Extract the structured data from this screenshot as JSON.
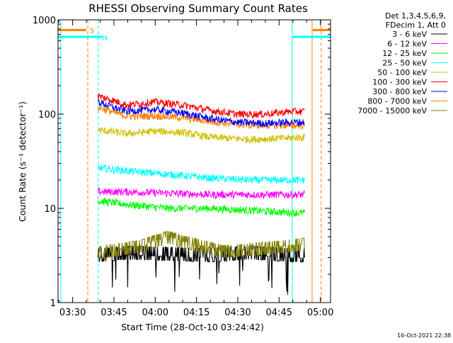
{
  "chart_data": {
    "type": "line",
    "title": "RHESSI Observing Summary Count Rates",
    "xlabel": "Start Time (28-Oct-10 03:24:42)",
    "ylabel": "Count Rate (s⁻¹ detector⁻¹)",
    "yscale": "log",
    "ylim": [
      1,
      1000
    ],
    "x_unit": "minutes after 03:24:42",
    "xlim": [
      0,
      99
    ],
    "x_ticks": [
      {
        "t": 5.3,
        "label": "03:30"
      },
      {
        "t": 20.3,
        "label": "03:45"
      },
      {
        "t": 35.3,
        "label": "04:00"
      },
      {
        "t": 50.3,
        "label": "04:15"
      },
      {
        "t": 65.3,
        "label": "04:30"
      },
      {
        "t": 80.3,
        "label": "04:45"
      },
      {
        "t": 95.3,
        "label": "05:00"
      }
    ],
    "y_ticks": [
      {
        "v": 1,
        "label": "1"
      },
      {
        "v": 10,
        "label": "10"
      },
      {
        "v": 100,
        "label": "100"
      },
      {
        "v": 1000,
        "label": "1000"
      }
    ],
    "timestamp": "16-Oct-2021 22:38",
    "legend": {
      "placement": "right",
      "header1": "Det 1,3,4,5,6,9,",
      "header2": "FDecim 1, Att 0"
    },
    "markers": {
      "saa_label": "S",
      "night_label": "N",
      "saa_color": "#ff8000",
      "night_color": "#00ffff",
      "saa_level": 780,
      "night_level": 660,
      "saa_end": 10.8,
      "night_end": 14.6,
      "saa_start": 92.3,
      "night_start": 85.1
    },
    "data_window": [
      14.5,
      89.6
    ],
    "series": [
      {
        "name": "3 - 6 keV",
        "color": "#000000",
        "noise": "quantized",
        "points": [
          [
            14.5,
            3.0
          ],
          [
            25,
            3.2
          ],
          [
            40,
            3.1
          ],
          [
            55,
            3.0
          ],
          [
            70,
            3.2
          ],
          [
            85,
            3.0
          ],
          [
            89.6,
            3.0
          ]
        ]
      },
      {
        "name": "6 - 12 keV",
        "color": "#ff00ff",
        "noise": "normal",
        "points": [
          [
            14.5,
            15
          ],
          [
            25,
            15
          ],
          [
            40,
            14.5
          ],
          [
            55,
            14
          ],
          [
            70,
            14
          ],
          [
            85,
            14
          ],
          [
            89.6,
            14
          ]
        ]
      },
      {
        "name": "12 - 25 keV",
        "color": "#00ff00",
        "noise": "normal",
        "points": [
          [
            14.5,
            12
          ],
          [
            25,
            11
          ],
          [
            40,
            10
          ],
          [
            55,
            10
          ],
          [
            70,
            9.5
          ],
          [
            85,
            9
          ],
          [
            89.6,
            9
          ]
        ]
      },
      {
        "name": "25 - 50 keV",
        "color": "#00ffff",
        "noise": "normal",
        "points": [
          [
            14.5,
            27
          ],
          [
            25,
            25
          ],
          [
            40,
            23
          ],
          [
            55,
            21
          ],
          [
            70,
            20
          ],
          [
            85,
            20
          ],
          [
            89.6,
            20
          ]
        ]
      },
      {
        "name": "50 - 100 keV",
        "color": "#d0c000",
        "noise": "normal",
        "points": [
          [
            14.5,
            68
          ],
          [
            25,
            62
          ],
          [
            35,
            66
          ],
          [
            45,
            64
          ],
          [
            55,
            57
          ],
          [
            70,
            54
          ],
          [
            85,
            56
          ],
          [
            89.6,
            57
          ]
        ]
      },
      {
        "name": "100 - 300 keV",
        "color": "#ff0000",
        "noise": "normal",
        "points": [
          [
            14.5,
            155
          ],
          [
            20,
            140
          ],
          [
            25,
            125
          ],
          [
            35,
            135
          ],
          [
            45,
            125
          ],
          [
            55,
            110
          ],
          [
            65,
            100
          ],
          [
            75,
            100
          ],
          [
            85,
            107
          ],
          [
            89.6,
            107
          ]
        ]
      },
      {
        "name": "300 - 800 keV",
        "color": "#0000ff",
        "noise": "normal",
        "points": [
          [
            14.5,
            135
          ],
          [
            20,
            118
          ],
          [
            25,
            108
          ],
          [
            35,
            112
          ],
          [
            45,
            103
          ],
          [
            55,
            90
          ],
          [
            65,
            82
          ],
          [
            75,
            80
          ],
          [
            85,
            82
          ],
          [
            89.6,
            82
          ]
        ]
      },
      {
        "name": "800 - 7000 keV",
        "color": "#ff8000",
        "noise": "normal",
        "points": [
          [
            14.5,
            118
          ],
          [
            20,
            105
          ],
          [
            25,
            95
          ],
          [
            35,
            96
          ],
          [
            45,
            92
          ],
          [
            55,
            84
          ],
          [
            65,
            78
          ],
          [
            75,
            76
          ],
          [
            85,
            76
          ],
          [
            89.6,
            76
          ]
        ]
      },
      {
        "name": "7000 - 15000 keV",
        "color": "#808000",
        "noise": "quantized2",
        "points": [
          [
            14.5,
            3.4
          ],
          [
            30,
            4.0
          ],
          [
            40,
            5.0
          ],
          [
            45,
            4.5
          ],
          [
            60,
            3.5
          ],
          [
            75,
            3.8
          ],
          [
            89.6,
            4.2
          ]
        ]
      }
    ]
  }
}
